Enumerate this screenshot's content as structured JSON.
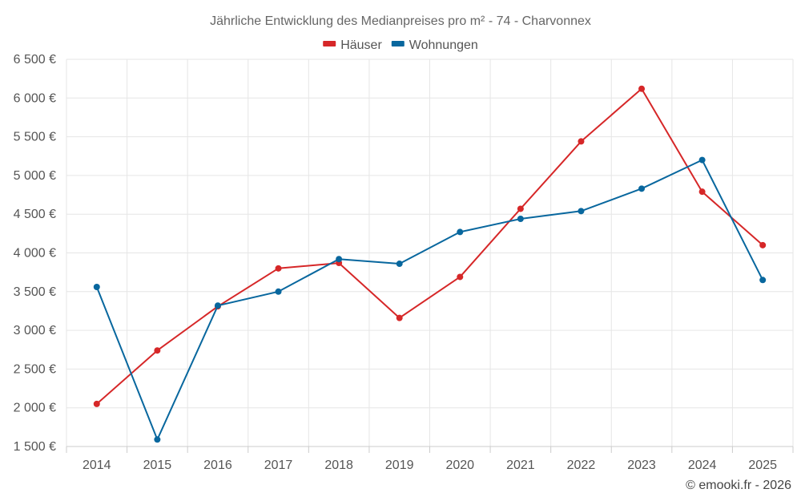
{
  "chart_data": {
    "type": "line",
    "title": "Jährliche Entwicklung des Medianpreises pro m² - 74 - Charvonnex",
    "categories": [
      "2014",
      "2015",
      "2016",
      "2017",
      "2018",
      "2019",
      "2020",
      "2021",
      "2022",
      "2023",
      "2024",
      "2025"
    ],
    "series": [
      {
        "name": "Häuser",
        "color": "#d62728",
        "values": [
          2050,
          2740,
          3310,
          3800,
          3870,
          3160,
          3690,
          4570,
          5440,
          6120,
          4790,
          4100
        ]
      },
      {
        "name": "Wohnungen",
        "color": "#08679e",
        "values": [
          3560,
          1590,
          3320,
          3500,
          3920,
          3860,
          4270,
          4440,
          4540,
          4830,
          5200,
          3650
        ]
      }
    ],
    "ylim": [
      1500,
      6500
    ],
    "yticks": [
      1500,
      2000,
      2500,
      3000,
      3500,
      4000,
      4500,
      5000,
      5500,
      6000,
      6500
    ],
    "ytick_labels": [
      "1 500 €",
      "2 000 €",
      "2 500 €",
      "3 000 €",
      "3 500 €",
      "4 000 €",
      "4 500 €",
      "5 000 €",
      "5 500 €",
      "6 000 €",
      "6 500 €"
    ],
    "xlabel": "",
    "ylabel": "",
    "legend_position": "top-center",
    "grid": true
  },
  "credit": "© emooki.fr - 2026"
}
